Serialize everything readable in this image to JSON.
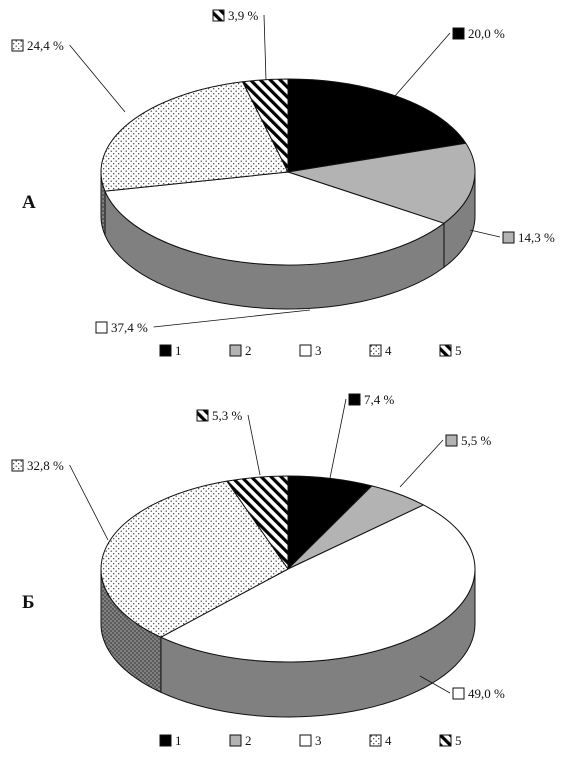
{
  "colors": {
    "s1": "#000000",
    "s2": "#b3b3b3",
    "s3": "#ffffff",
    "s4": "#ffffff",
    "s5": "#ffffff",
    "wall": "#808080",
    "outline": "#111111"
  },
  "legend_labels": [
    "1",
    "2",
    "3",
    "4",
    "5"
  ],
  "chart_data": [
    {
      "type": "pie",
      "panel": "А",
      "categories": [
        "1",
        "2",
        "3",
        "4",
        "5"
      ],
      "values": [
        20.0,
        14.3,
        37.4,
        24.4,
        3.9
      ],
      "value_labels": [
        "20,0 %",
        "14,3 %",
        "37,4 %",
        "24,4 %",
        "3,9 %"
      ],
      "legend": [
        "1",
        "2",
        "3",
        "4",
        "5"
      ],
      "legend_position": "bottom",
      "style": "3d"
    },
    {
      "type": "pie",
      "panel": "Б",
      "categories": [
        "1",
        "2",
        "3",
        "4",
        "5"
      ],
      "values": [
        7.4,
        5.5,
        49.0,
        32.8,
        5.3
      ],
      "value_labels": [
        "7,4 %",
        "5,5 %",
        "49,0 %",
        "32,8 %",
        "5,3 %"
      ],
      "legend": [
        "1",
        "2",
        "3",
        "4",
        "5"
      ],
      "legend_position": "bottom",
      "style": "3d"
    }
  ]
}
